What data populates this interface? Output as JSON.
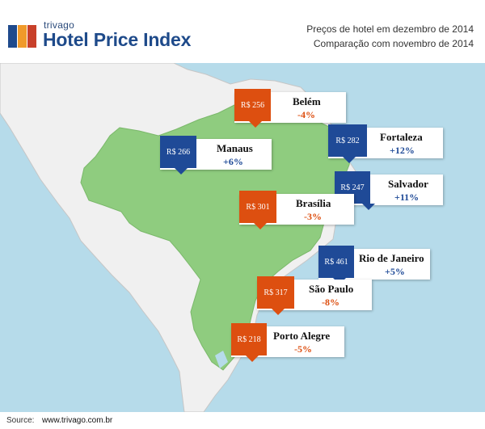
{
  "header": {
    "brand_small": "trivago",
    "brand_title": "Hotel Price Index",
    "subtitle_line1": "Preços de hotel em dezembro de 2014",
    "subtitle_line2": "Comparação com novembro de 2014"
  },
  "colors": {
    "ocean": "#b6dbea",
    "brazil": "#8fcc7f",
    "land": "#f0f0f0",
    "price_up": "#1f4a97",
    "price_down": "#dd4f10"
  },
  "cities": [
    {
      "name": "Belém",
      "price": "R$ 256",
      "change": "-4%"
    },
    {
      "name": "Manaus",
      "price": "R$ 266",
      "change": "+6%"
    },
    {
      "name": "Fortaleza",
      "price": "R$ 282",
      "change": "+12%"
    },
    {
      "name": "Salvador",
      "price": "R$ 247",
      "change": "+11%"
    },
    {
      "name": "Brasília",
      "price": "R$ 301",
      "change": "-3%"
    },
    {
      "name": "Rio de Janeiro",
      "price": "R$ 461",
      "change": "+5%"
    },
    {
      "name": "São Paulo",
      "price": "R$ 317",
      "change": "-8%"
    },
    {
      "name": "Porto Alegre",
      "price": "R$ 218",
      "change": "-5%"
    }
  ],
  "footer": {
    "source_label": "Source:",
    "source_url": "www.trivago.com.br"
  }
}
